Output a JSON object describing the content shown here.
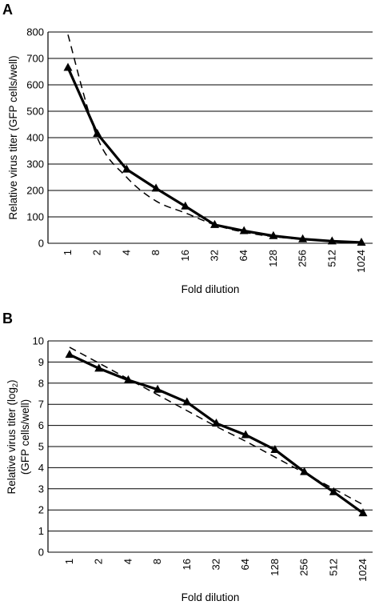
{
  "chart_data": [
    {
      "type": "line",
      "panel_label": "A",
      "xlabel": "Fold dilution",
      "ylabel": "Relative virus titer (GFP cells/well)",
      "categories": [
        "1",
        "2",
        "4",
        "8",
        "16",
        "32",
        "64",
        "128",
        "256",
        "512",
        "1024"
      ],
      "ylim": [
        0,
        800
      ],
      "yticks": [
        0,
        100,
        200,
        300,
        400,
        500,
        600,
        700,
        800
      ],
      "grid": true,
      "series": [
        {
          "style": "solid-triangle-markers",
          "values": [
            665,
            415,
            280,
            208,
            140,
            70,
            47,
            28,
            16,
            8,
            3
          ]
        },
        {
          "style": "dashed-fit",
          "values": [
            790,
            400,
            250,
            160,
            115,
            70,
            42,
            25,
            15,
            8,
            4
          ]
        }
      ]
    },
    {
      "type": "line",
      "panel_label": "B",
      "xlabel": "Fold dilution",
      "ylabel_line1": "Relative virus titer (log",
      "ylabel_sub": "2",
      "ylabel_line1_end": ")",
      "ylabel_line2": "(GFP cells/well)",
      "categories": [
        "1",
        "2",
        "4",
        "8",
        "16",
        "32",
        "64",
        "128",
        "256",
        "512",
        "1024"
      ],
      "ylim": [
        0,
        10
      ],
      "yticks": [
        0,
        1,
        2,
        3,
        4,
        5,
        6,
        7,
        8,
        9,
        10
      ],
      "grid": true,
      "series": [
        {
          "style": "solid-triangle-markers",
          "values": [
            9.35,
            8.7,
            8.15,
            7.7,
            7.1,
            6.1,
            5.55,
            4.85,
            3.8,
            2.85,
            1.85
          ]
        },
        {
          "style": "dashed-fit",
          "values": [
            9.7,
            8.95,
            8.2,
            7.45,
            6.7,
            5.95,
            5.25,
            4.5,
            3.75,
            3.0,
            2.25
          ]
        }
      ]
    }
  ]
}
